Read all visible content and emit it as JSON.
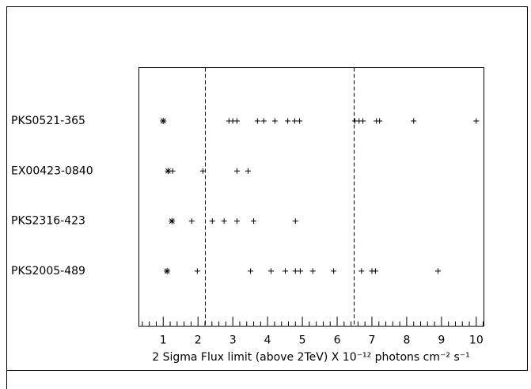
{
  "chart_data": {
    "type": "scatter",
    "xlabel": "2 Sigma Flux limit (above 2TeV) X 10⁻¹² photons cm⁻² s⁻¹",
    "xlim": [
      0.3,
      10.22
    ],
    "xticks": [
      1,
      2,
      3,
      4,
      5,
      6,
      7,
      8,
      9,
      10
    ],
    "xminor_ticks": [
      0.4,
      0.6,
      0.8,
      1.2,
      1.4,
      1.6,
      1.8,
      2.2,
      2.4,
      2.6,
      2.8,
      3.2,
      3.4,
      3.6,
      3.8,
      4.2,
      4.4,
      4.6,
      4.8,
      5.2,
      5.4,
      5.6,
      5.8,
      6.2,
      6.4,
      6.6,
      6.8,
      7.2,
      7.4,
      7.6,
      7.8,
      8.2,
      8.4,
      8.6,
      8.8,
      9.2,
      9.4,
      9.6,
      9.8,
      10.2
    ],
    "vlines": [
      2.21,
      6.49
    ],
    "color": "#000000",
    "rows": [
      {
        "label": "PKS0521-365",
        "star": 1.0,
        "values": [
          2.89,
          3.0,
          3.12,
          3.71,
          3.89,
          4.21,
          4.58,
          4.78,
          4.92,
          6.51,
          6.63,
          6.74,
          7.13,
          7.22,
          8.2,
          10.0
        ]
      },
      {
        "label": "EX00423-0840",
        "star": 1.14,
        "values": [
          1.27,
          2.14,
          3.12,
          3.44
        ]
      },
      {
        "label": "PKS2316-423",
        "star": 1.25,
        "values": [
          1.82,
          2.41,
          2.75,
          3.12,
          3.6,
          4.8
        ]
      },
      {
        "label": "PKS2005-489",
        "star": 1.11,
        "values": [
          1.98,
          3.51,
          4.1,
          4.51,
          4.8,
          4.94,
          5.3,
          5.9,
          6.7,
          7.0,
          7.1,
          8.9
        ]
      }
    ]
  }
}
